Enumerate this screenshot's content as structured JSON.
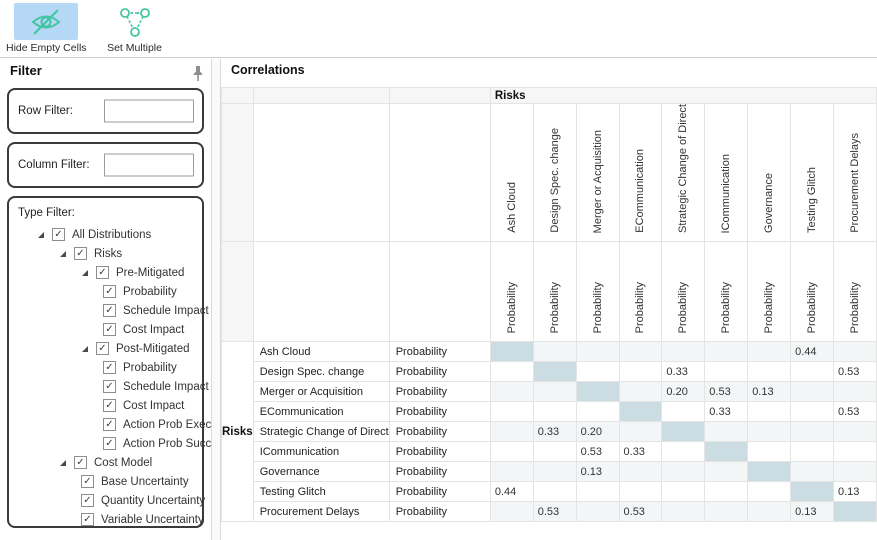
{
  "toolbar": {
    "hide_empty_cells": {
      "label": "Hide Empty Cells",
      "icon": "eye-off-icon",
      "active": true
    },
    "set_multiple": {
      "label": "Set Multiple",
      "icon": "set-multiple-icon",
      "active": false
    }
  },
  "filter": {
    "title": "Filter",
    "pin_icon": "pin-icon",
    "row_filter_label": "Row Filter:",
    "row_filter_value": "",
    "column_filter_label": "Column Filter:",
    "column_filter_value": "",
    "type_filter_label": "Type Filter:",
    "tree": [
      {
        "label": "All Distributions",
        "level": 0,
        "expanded": true,
        "checked": true
      },
      {
        "label": "Risks",
        "level": 1,
        "expanded": true,
        "checked": true
      },
      {
        "label": "Pre-Mitigated",
        "level": 2,
        "expanded": true,
        "checked": true
      },
      {
        "label": "Probability",
        "level": 3,
        "checked": true
      },
      {
        "label": "Schedule Impact",
        "level": 3,
        "checked": true
      },
      {
        "label": "Cost Impact",
        "level": 3,
        "checked": true
      },
      {
        "label": "Post-Mitigated",
        "level": 2,
        "expanded": true,
        "checked": true
      },
      {
        "label": "Probability",
        "level": 3,
        "checked": true
      },
      {
        "label": "Schedule Impact",
        "level": 3,
        "checked": true
      },
      {
        "label": "Cost Impact",
        "level": 3,
        "checked": true
      },
      {
        "label": "Action Prob Exec.",
        "level": 3,
        "checked": true
      },
      {
        "label": "Action Prob Succ.",
        "level": 3,
        "checked": true
      },
      {
        "label": "Cost Model",
        "level": 1,
        "expanded": true,
        "checked": true
      },
      {
        "label": "Base Uncertainty",
        "level": 2,
        "checked": true
      },
      {
        "label": "Quantity Uncertainty",
        "level": 2,
        "checked": true
      },
      {
        "label": "Variable Uncertainty",
        "level": 2,
        "checked": true
      }
    ]
  },
  "correlations": {
    "title": "Correlations",
    "column_group_label": "Risks",
    "row_group_label": "Risks",
    "sub_header": "Probability",
    "columns": [
      "Ash Cloud",
      "Design Spec. change",
      "Merger or Acquisition",
      "ECommunication",
      "Strategic Change of Direct",
      "ICommunication",
      "Governance",
      "Testing Glitch",
      "Procurement Delays"
    ],
    "rows": [
      {
        "name": "Ash Cloud",
        "dist": "Probability",
        "values": [
          "",
          "",
          "",
          "",
          "",
          "",
          "",
          "0.44",
          ""
        ]
      },
      {
        "name": "Design Spec. change",
        "dist": "Probability",
        "values": [
          "",
          "",
          "",
          "",
          "0.33",
          "",
          "",
          "",
          "0.53"
        ]
      },
      {
        "name": "Merger or Acquisition",
        "dist": "Probability",
        "values": [
          "",
          "",
          "",
          "",
          "0.20",
          "0.53",
          "0.13",
          "",
          ""
        ]
      },
      {
        "name": "ECommunication",
        "dist": "Probability",
        "values": [
          "",
          "",
          "",
          "",
          "",
          "0.33",
          "",
          "",
          "0.53"
        ]
      },
      {
        "name": "Strategic Change of Direct",
        "dist": "Probability",
        "values": [
          "",
          "0.33",
          "0.20",
          "",
          "",
          "",
          "",
          "",
          ""
        ]
      },
      {
        "name": "ICommunication",
        "dist": "Probability",
        "values": [
          "",
          "",
          "0.53",
          "0.33",
          "",
          "",
          "",
          "",
          ""
        ]
      },
      {
        "name": "Governance",
        "dist": "Probability",
        "values": [
          "",
          "",
          "0.13",
          "",
          "",
          "",
          "",
          "",
          ""
        ]
      },
      {
        "name": "Testing Glitch",
        "dist": "Probability",
        "values": [
          "0.44",
          "",
          "",
          "",
          "",
          "",
          "",
          "",
          "0.13"
        ]
      },
      {
        "name": "Procurement Delays",
        "dist": "Probability",
        "values": [
          "",
          "0.53",
          "",
          "0.53",
          "",
          "",
          "",
          "0.13",
          ""
        ]
      }
    ]
  },
  "colors": {
    "toolbar_active_bg": "#b5d8f6",
    "icon_teal": "#45c5a2",
    "diagonal_cell": "#cbdce2",
    "row_stripe": "#f2f6f7"
  }
}
